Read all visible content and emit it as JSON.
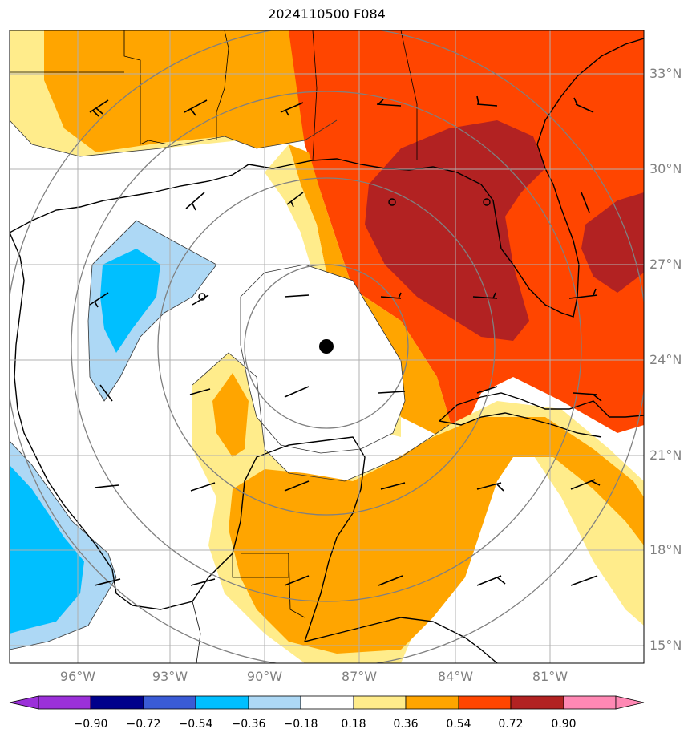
{
  "title": "2024110500 F084",
  "lat_labels": [
    "33°N",
    "30°N",
    "27°N",
    "24°N",
    "21°N",
    "18°N",
    "15°N"
  ],
  "lon_labels": [
    "96°W",
    "93°W",
    "90°W",
    "87°W",
    "84°W",
    "81°W"
  ],
  "colorbar": {
    "labels": [
      "−0.90",
      "−0.72",
      "−0.54",
      "−0.36",
      "−0.18",
      "0.18",
      "0.36",
      "0.54",
      "0.72",
      "0.90"
    ],
    "colors": [
      "#9b30d9",
      "#00008b",
      "#3a5bd6",
      "#00bfff",
      "#add8f5",
      "#ffffff",
      "#ffec8b",
      "#ffa500",
      "#ff4500",
      "#b22222",
      "#ff88b4"
    ]
  },
  "fill_colors": {
    "light_yellow": "#ffec8b",
    "orange": "#ffa500",
    "red_orange": "#ff4500",
    "dark_red": "#b22222",
    "light_blue": "#add8f5",
    "sky_blue": "#00bfff"
  },
  "center_marker": {
    "lat": 24.4,
    "lon": -88.2,
    "name": "storm-center"
  },
  "grid": true
}
